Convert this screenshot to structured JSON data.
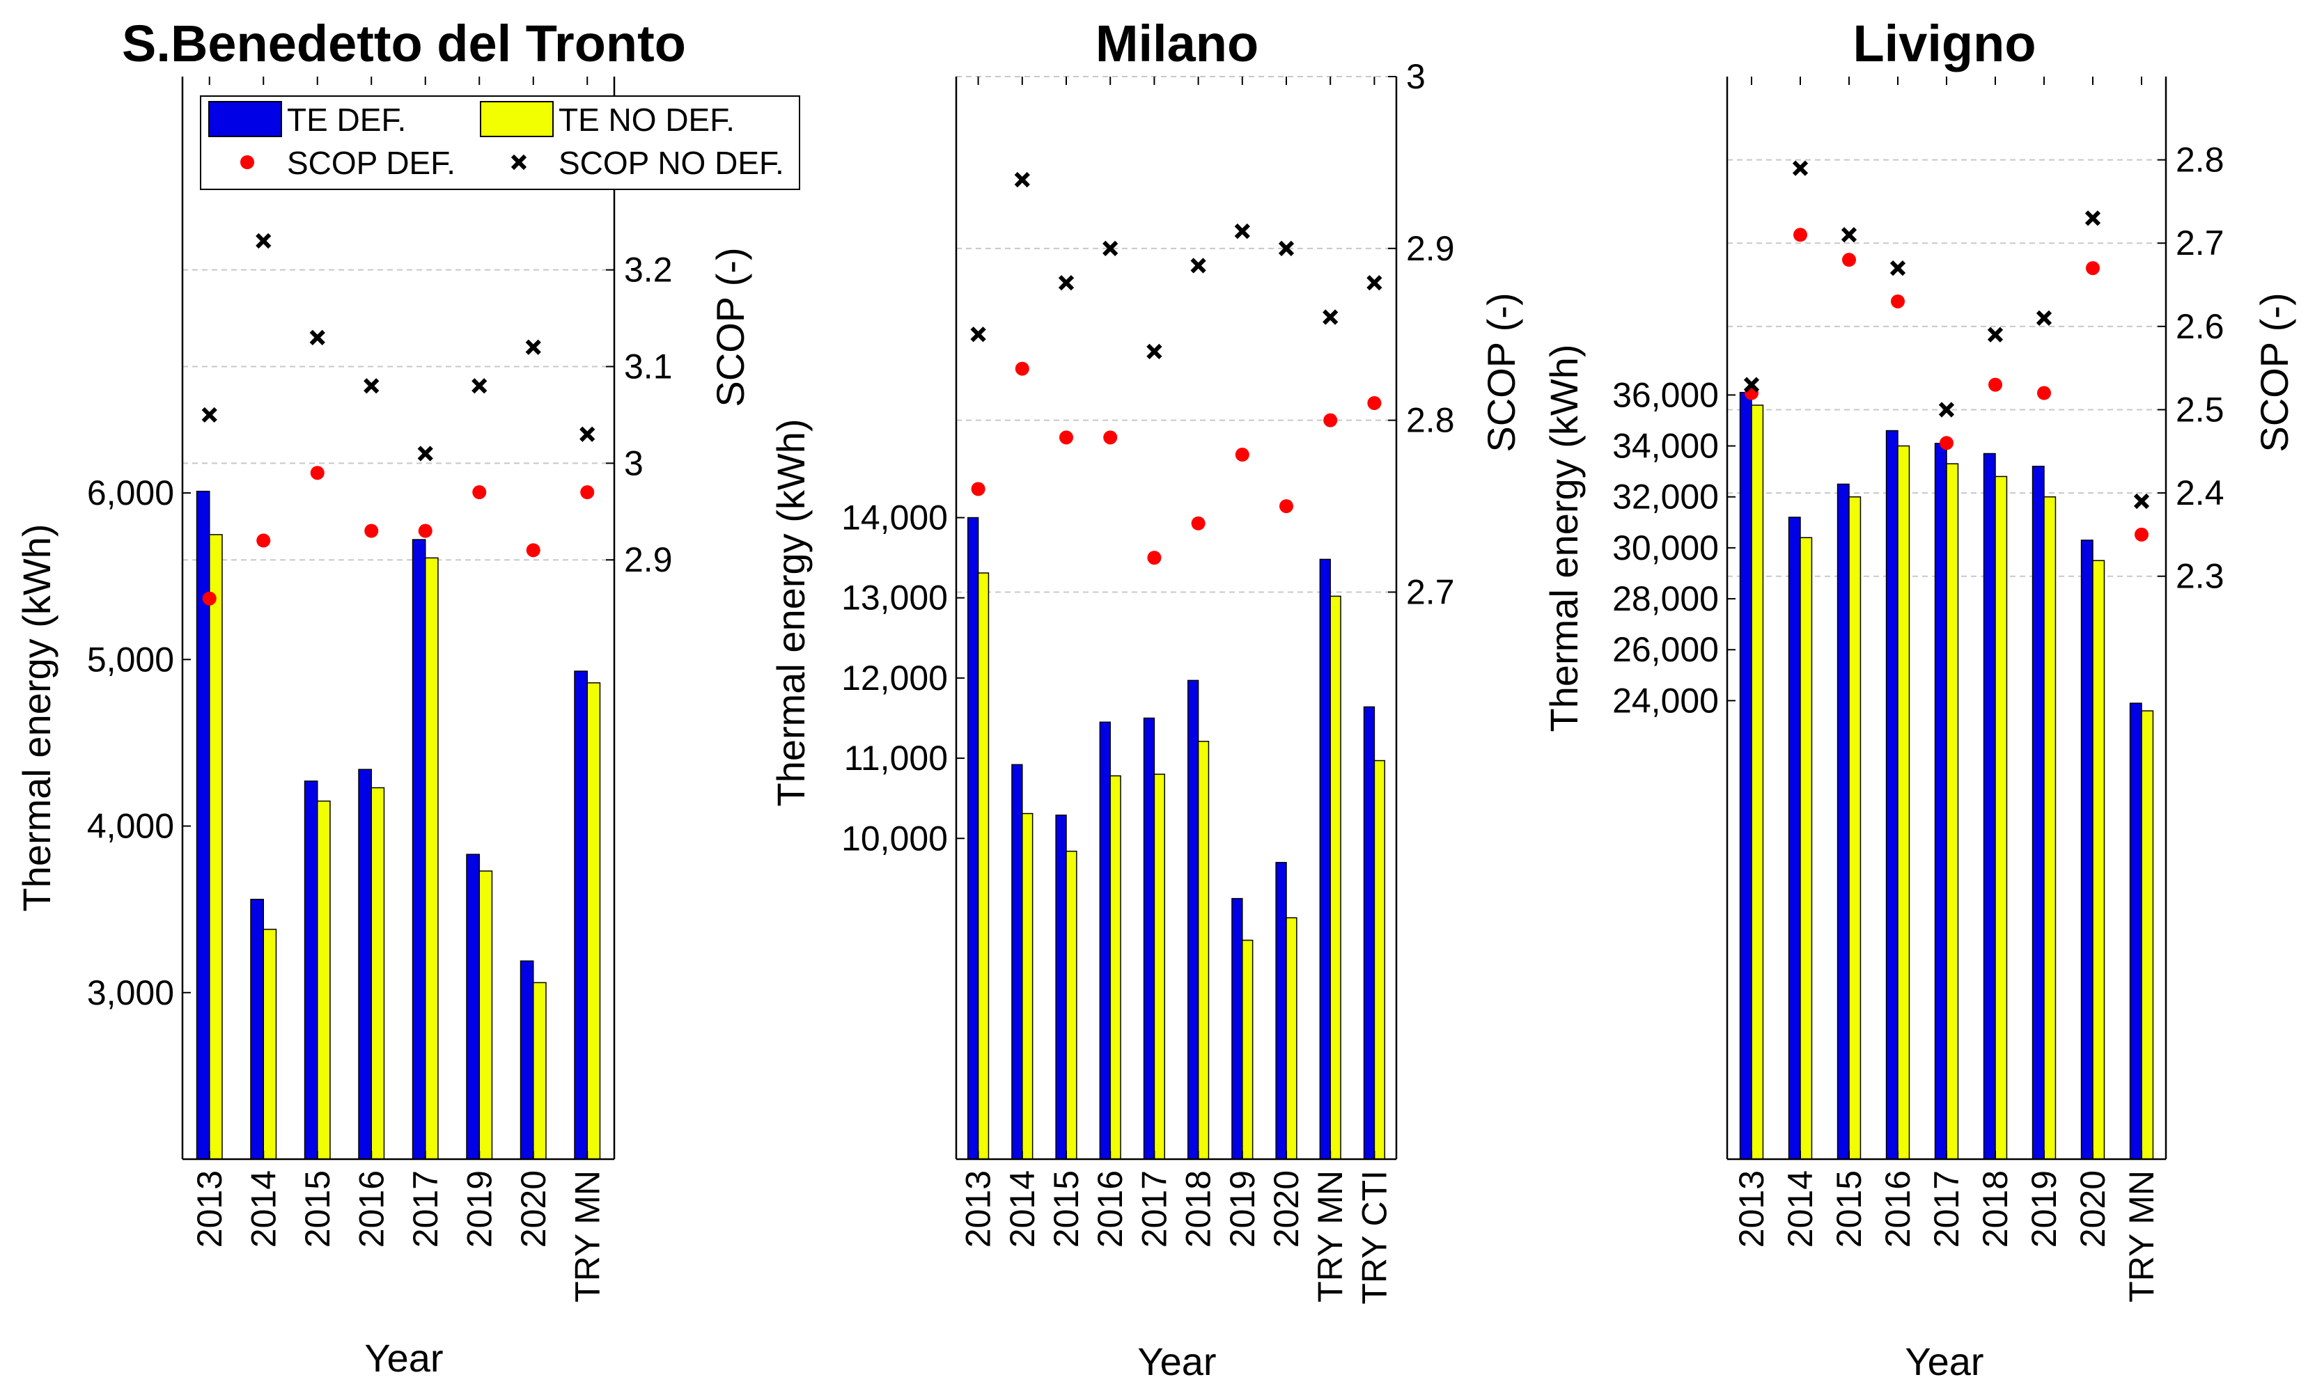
{
  "chart_data": [
    {
      "type": "bar",
      "title": "S.Benedetto del Tronto",
      "xlabel": "Year",
      "ylabel": "Thermal energy (kWh)",
      "y2label": "SCOP (-)",
      "categories": [
        "2013",
        "2014",
        "2015",
        "2016",
        "2017",
        "2019",
        "2020",
        "TRY MN"
      ],
      "ylim": [
        2000,
        8500
      ],
      "yticks": [
        3000,
        4000,
        5000,
        6000
      ],
      "y2lim": [
        2.28,
        3.4
      ],
      "y2ticks": [
        2.9,
        3.0,
        3.1,
        3.2
      ],
      "series": [
        {
          "name": "TE DEF.",
          "axis": "left",
          "kind": "bar",
          "color": "#0000e6",
          "values": [
            6010,
            3560,
            4270,
            4340,
            5720,
            3830,
            3190,
            4930
          ]
        },
        {
          "name": "TE NO DEF.",
          "axis": "left",
          "kind": "bar",
          "color": "#f2ff00",
          "values": [
            5750,
            3380,
            4150,
            4230,
            5610,
            3730,
            3060,
            4860
          ]
        },
        {
          "name": "SCOP DEF.",
          "axis": "right",
          "kind": "dot",
          "color": "#ff0000",
          "values": [
            2.86,
            2.92,
            2.99,
            2.93,
            2.93,
            2.97,
            2.91,
            2.97
          ]
        },
        {
          "name": "SCOP NO DEF.",
          "axis": "right",
          "kind": "x",
          "color": "#000000",
          "values": [
            3.05,
            3.23,
            3.13,
            3.08,
            3.01,
            3.08,
            3.12,
            3.03
          ]
        }
      ],
      "legend": {
        "entries": [
          "TE DEF.",
          "TE NO DEF.",
          "SCOP DEF.",
          "SCOP NO DEF."
        ],
        "location": "top"
      }
    },
    {
      "type": "bar",
      "title": "Milano",
      "xlabel": "Year",
      "ylabel": "Thermal energy (kWh)",
      "y2label": "SCOP (-)",
      "categories": [
        "2013",
        "2014",
        "2015",
        "2016",
        "2017",
        "2018",
        "2019",
        "2020",
        "TRY MN",
        "TRY CTI"
      ],
      "ylim": [
        6000,
        19500
      ],
      "yticks": [
        10000,
        11000,
        12000,
        13000,
        14000
      ],
      "y2lim": [
        2.37,
        3.0
      ],
      "y2ticks": [
        2.7,
        2.8,
        2.9,
        3.0
      ],
      "series": [
        {
          "name": "TE DEF.",
          "axis": "left",
          "kind": "bar",
          "color": "#0000e6",
          "values": [
            14000,
            10920,
            10290,
            11450,
            11500,
            11970,
            9250,
            9700,
            13480,
            11640
          ]
        },
        {
          "name": "TE NO DEF.",
          "axis": "left",
          "kind": "bar",
          "color": "#f2ff00",
          "values": [
            13310,
            10310,
            9840,
            10780,
            10800,
            11210,
            8730,
            9010,
            13020,
            10970
          ]
        },
        {
          "name": "SCOP DEF.",
          "axis": "right",
          "kind": "dot",
          "color": "#ff0000",
          "values": [
            2.76,
            2.83,
            2.79,
            2.79,
            2.72,
            2.74,
            2.78,
            2.75,
            2.8,
            2.81
          ]
        },
        {
          "name": "SCOP NO DEF.",
          "axis": "right",
          "kind": "x",
          "color": "#000000",
          "values": [
            2.85,
            2.94,
            2.88,
            2.9,
            2.84,
            2.89,
            2.91,
            2.9,
            2.86,
            2.88
          ]
        }
      ]
    },
    {
      "type": "bar",
      "title": "Livigno",
      "xlabel": "Year",
      "ylabel": "Thermal energy (kWh)",
      "y2label": "SCOP (-)",
      "categories": [
        "2013",
        "2014",
        "2015",
        "2016",
        "2017",
        "2018",
        "2019",
        "2020",
        "TRY MN"
      ],
      "ylim": [
        6000,
        48500
      ],
      "yticks": [
        24000,
        26000,
        28000,
        30000,
        32000,
        34000,
        36000
      ],
      "y2lim": [
        1.6,
        2.9
      ],
      "y2ticks": [
        2.3,
        2.4,
        2.5,
        2.6,
        2.7,
        2.8
      ],
      "series": [
        {
          "name": "TE DEF.",
          "axis": "left",
          "kind": "bar",
          "color": "#0000e6",
          "values": [
            36100,
            31200,
            32500,
            34600,
            34100,
            33700,
            33200,
            30300,
            23900
          ]
        },
        {
          "name": "TE NO DEF.",
          "axis": "left",
          "kind": "bar",
          "color": "#f2ff00",
          "values": [
            35600,
            30400,
            32000,
            34000,
            33300,
            32800,
            32000,
            29500,
            23600
          ]
        },
        {
          "name": "SCOP DEF.",
          "axis": "right",
          "kind": "dot",
          "color": "#ff0000",
          "values": [
            2.52,
            2.71,
            2.68,
            2.63,
            2.46,
            2.53,
            2.52,
            2.67,
            2.35
          ]
        },
        {
          "name": "SCOP NO DEF.",
          "axis": "right",
          "kind": "x",
          "color": "#000000",
          "values": [
            2.53,
            2.79,
            2.71,
            2.67,
            2.5,
            2.59,
            2.61,
            2.73,
            2.39
          ]
        }
      ]
    }
  ]
}
